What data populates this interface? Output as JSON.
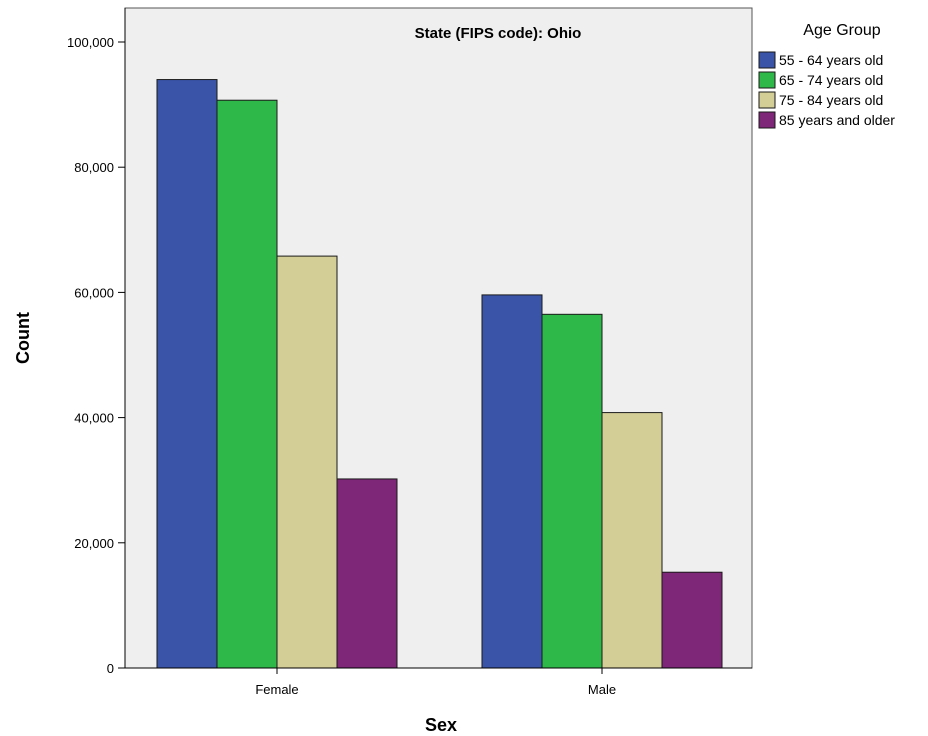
{
  "chart_data": {
    "type": "bar",
    "title": "State (FIPS code): Ohio",
    "xlabel": "Sex",
    "ylabel": "Count",
    "categories": [
      "Female",
      "Male"
    ],
    "ylim": [
      0,
      100000
    ],
    "y_ticks": [
      0,
      20000,
      40000,
      60000,
      80000,
      100000
    ],
    "y_tick_labels": [
      "0",
      "20,000",
      "40,000",
      "60,000",
      "80,000",
      "100,000"
    ],
    "grid": false,
    "legend": {
      "title": "Age Group",
      "placement": "top-right-outside"
    },
    "series": [
      {
        "name": "55 - 64 years old",
        "color": "#3a54a8",
        "values": [
          94000,
          59600
        ]
      },
      {
        "name": "65 - 74 years old",
        "color": "#2fb84a",
        "values": [
          90700,
          56500
        ]
      },
      {
        "name": "75 - 84 years old",
        "color": "#d3cd96",
        "values": [
          65800,
          40800
        ]
      },
      {
        "name": "85 years and older",
        "color": "#7e2778",
        "values": [
          30200,
          15300
        ]
      }
    ],
    "colors": {
      "plot_background": "#efefef",
      "axis": "#000000"
    }
  }
}
